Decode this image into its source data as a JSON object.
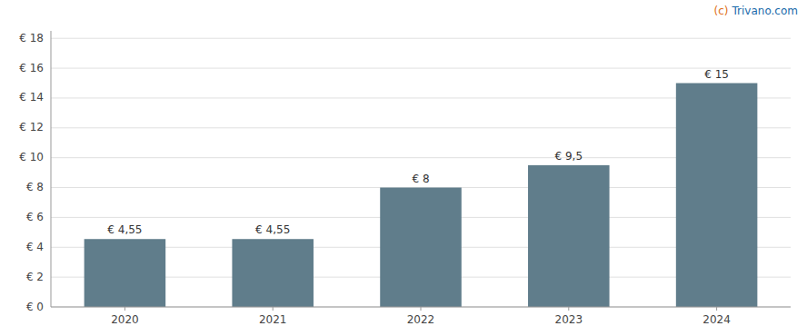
{
  "chart_data": {
    "type": "bar",
    "categories": [
      "2020",
      "2021",
      "2022",
      "2023",
      "2024"
    ],
    "values": [
      4.55,
      4.55,
      8.0,
      9.5,
      15.0
    ],
    "value_labels": [
      "€ 4,55",
      "€ 4,55",
      "€ 8",
      "€ 9,5",
      "€ 15"
    ],
    "data_labels": true,
    "color": "#607d8b",
    "ylim": [
      0,
      18.5
    ],
    "yticks": [
      {
        "value": 0,
        "label": "€ 0"
      },
      {
        "value": 2,
        "label": "€ 2"
      },
      {
        "value": 4,
        "label": "€ 4"
      },
      {
        "value": 6,
        "label": "€ 6"
      },
      {
        "value": 8,
        "label": "€ 8"
      },
      {
        "value": 10,
        "label": "€ 10"
      },
      {
        "value": 12,
        "label": "€ 12"
      },
      {
        "value": 14,
        "label": "€ 14"
      },
      {
        "value": 16,
        "label": "€ 16"
      },
      {
        "value": 18,
        "label": "€ 18"
      }
    ],
    "grid": true,
    "annotations": [
      {
        "text": "(c)",
        "color": "#e07020"
      },
      {
        "text": "Trivano.com",
        "color": "#1a6aaa"
      }
    ]
  }
}
